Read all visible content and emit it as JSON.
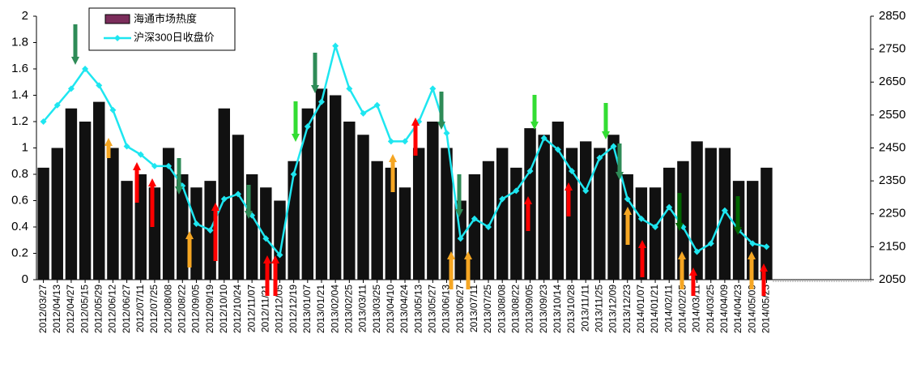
{
  "chart_data": {
    "type": "bar_line",
    "categories": [
      "2012/03/27",
      "2012/04/13",
      "2012/04/27",
      "2012/05/15",
      "2012/05/29",
      "2012/06/12",
      "2012/06/27",
      "2012/07/11",
      "2012/07/25",
      "2012/08/08",
      "2012/08/22",
      "2012/09/05",
      "2012/09/19",
      "2012/10/10",
      "2012/10/24",
      "2012/11/07",
      "2012/11/21",
      "2012/12/05",
      "2012/12/19",
      "2013/01/07",
      "2013/01/21",
      "2013/02/04",
      "2013/02/25",
      "2013/03/11",
      "2013/03/25",
      "2013/04/10",
      "2013/04/24",
      "2013/05/13",
      "2013/05/27",
      "2013/06/13",
      "2013/06/27",
      "2013/07/11",
      "2013/07/25",
      "2013/08/08",
      "2013/08/22",
      "2013/09/05",
      "2013/09/23",
      "2013/10/14",
      "2013/10/28",
      "2013/11/11",
      "2013/11/25",
      "2013/12/09",
      "2013/12/23",
      "2014/01/07",
      "2014/01/21",
      "2014/02/11",
      "2014/02/25",
      "2014/03/11",
      "2014/03/25",
      "2014/04/09",
      "2014/04/23",
      "2014/05/09",
      "2014/05/23"
    ],
    "series": [
      {
        "name": "海通市场热度",
        "color": "#111111",
        "legend_color": "#7b2d5b",
        "axis": "y",
        "values": [
          0.85,
          1.0,
          1.3,
          1.2,
          1.35,
          1.0,
          0.75,
          0.8,
          0.7,
          1.0,
          0.8,
          0.7,
          0.75,
          1.3,
          1.1,
          0.8,
          0.7,
          0.6,
          0.9,
          1.3,
          1.45,
          1.4,
          1.2,
          1.1,
          0.9,
          0.85,
          0.7,
          1.0,
          1.2,
          1.0,
          0.6,
          0.8,
          0.9,
          1.0,
          0.85,
          1.15,
          1.1,
          1.2,
          1.0,
          1.05,
          1.0,
          1.1,
          0.8,
          0.7,
          0.7,
          0.85,
          0.9,
          1.05,
          1.0,
          1.0,
          0.75,
          0.75,
          0.85
        ]
      },
      {
        "name": "沪深300日收盘价",
        "color": "#1ee6f0",
        "axis": "y2",
        "values": [
          2530,
          2580,
          2630,
          2690,
          2640,
          2565,
          2455,
          2430,
          2395,
          2395,
          2335,
          2220,
          2200,
          2295,
          2310,
          2245,
          2175,
          2125,
          2370,
          2515,
          2590,
          2760,
          2630,
          2555,
          2580,
          2470,
          2470,
          2530,
          2630,
          2495,
          2175,
          2235,
          2210,
          2295,
          2320,
          2380,
          2480,
          2445,
          2380,
          2320,
          2420,
          2455,
          2295,
          2235,
          2210,
          2270,
          2210,
          2135,
          2160,
          2260,
          2200,
          2160,
          2150
        ]
      }
    ],
    "ylim": [
      0,
      2
    ],
    "yticks": [
      0,
      0.2,
      0.4,
      0.6,
      0.8,
      1,
      1.2,
      1.4,
      1.6,
      1.8,
      2
    ],
    "y2lim": [
      2050,
      2850
    ],
    "y2ticks": [
      2050,
      2150,
      2250,
      2350,
      2450,
      2550,
      2650,
      2750,
      2850
    ],
    "grid": false,
    "legend": "top-left"
  }
}
